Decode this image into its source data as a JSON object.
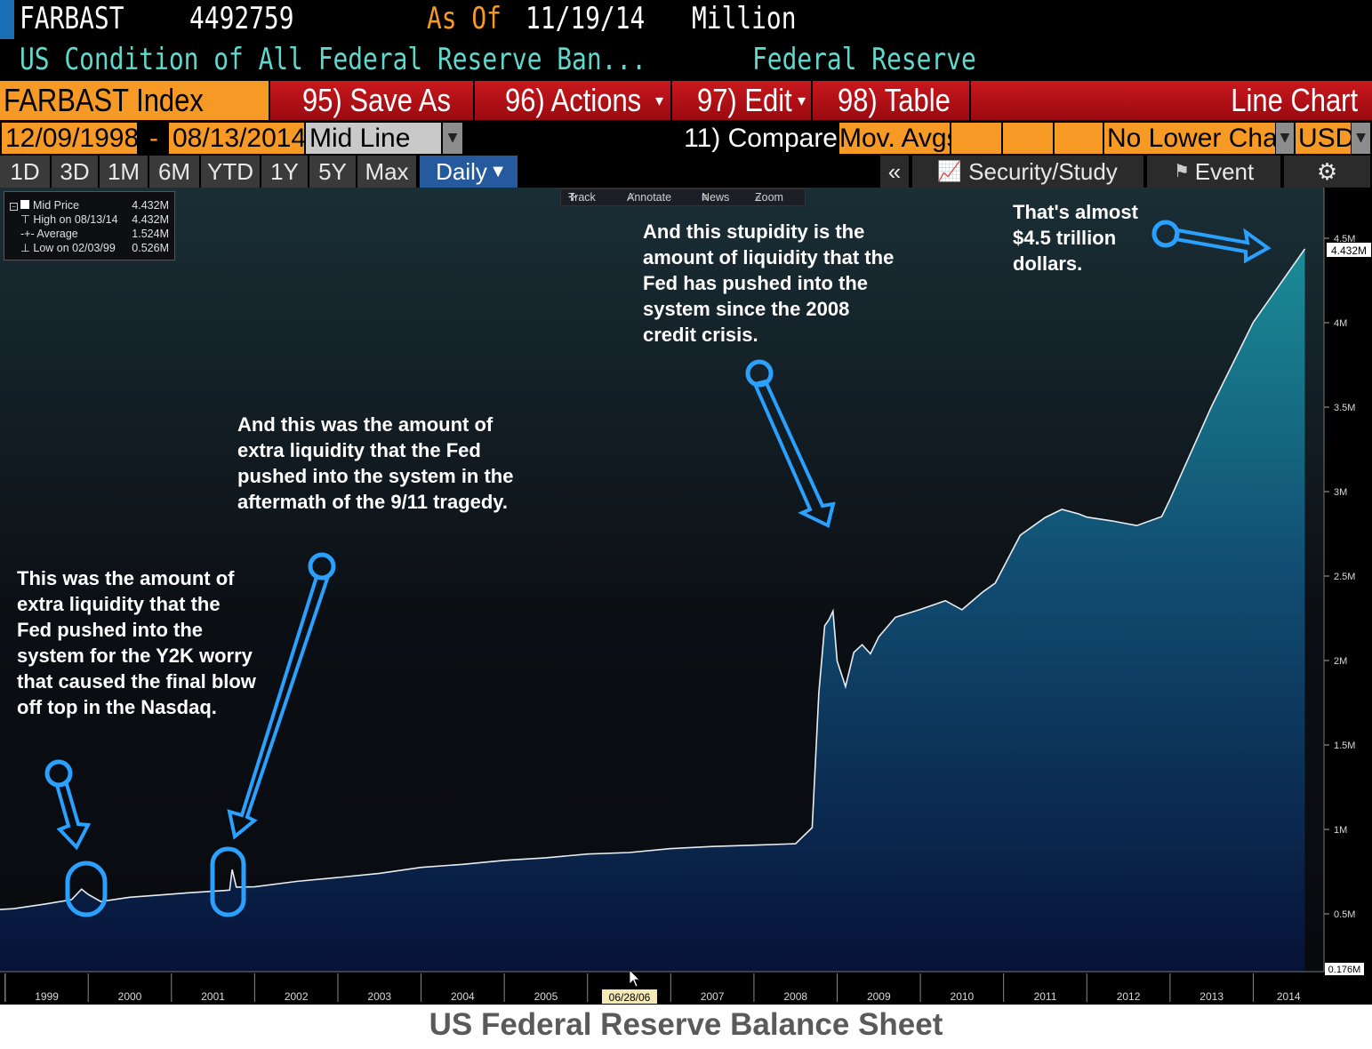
{
  "header": {
    "ticker": "FARBAST",
    "last_value": "4492759",
    "as_of_label": "As Of",
    "as_of_date": "11/19/14",
    "unit": "Million",
    "description": "US Condition of All Federal Reserve Ban...",
    "source": "Federal Reserve"
  },
  "command_bar": {
    "security": "FARBAST Index",
    "save_as": "95) Save As",
    "actions": "96) Actions",
    "edit": "97) Edit",
    "table": "98) Table",
    "view": "Line Chart"
  },
  "options_bar": {
    "start_date": "12/09/1998",
    "dash": "-",
    "end_date": "08/13/2014",
    "line_type": "Mid Line",
    "compare": "11) Compare",
    "mov_avgs": "Mov. Avgs",
    "lower_chart": "No Lower Chart",
    "currency": "USD"
  },
  "tabs": {
    "items": [
      "1D",
      "3D",
      "1M",
      "6M",
      "YTD",
      "1Y",
      "5Y",
      "Max"
    ],
    "active": "Daily",
    "collapse": "«",
    "security_study": "Security/Study",
    "event": "Event"
  },
  "legend": {
    "mid_label": "Mid Price",
    "mid_value": "4.432M",
    "high_label": "High on 08/13/14",
    "high_value": "4.432M",
    "avg_label": "Average",
    "avg_value": "1.524M",
    "low_label": "Low on 02/03/99",
    "low_value": "0.526M"
  },
  "toolbox": {
    "track": "Track",
    "annotate": "Annotate",
    "news": "News",
    "zoom": "Zoom"
  },
  "annotations": {
    "y2k": "This was the amount of extra liquidity that the Fed pushed into the system for the Y2K worry that caused the final blow off top in the Nasdaq.",
    "nine_eleven": "And this was the amount of extra liquidity that the Fed pushed into the system in the aftermath of the 9/11 tragedy.",
    "crisis": "And this stupidity is the amount of liquidity that the Fed has pushed into the system since the 2008 credit crisis.",
    "almost": "That's almost $4.5 trillion dollars."
  },
  "cursor_date": "06/28/06",
  "last_price_tag": "4.432M",
  "min_tag": "0.176M",
  "caption": "US Federal Reserve Balance Sheet",
  "colors": {
    "header_text": "#ffffff",
    "header_value": "#ffffff",
    "as_of": "#f79a25",
    "description": "#5fd9ce",
    "command_red": "#c8181d",
    "orange_field": "#f79a25",
    "active_tab": "#255a9e",
    "area_top": "#1b8d97",
    "area_bottom": "#071238",
    "callout": "#2aa0ff"
  },
  "chart_data": {
    "type": "area",
    "title": "US Federal Reserve Balance Sheet",
    "xlabel": "",
    "ylabel": "",
    "unit": "Million USD",
    "ylim": [
      176000,
      4600000
    ],
    "yticks": [
      "0.5M",
      "1M",
      "1.5M",
      "2M",
      "2.5M",
      "3M",
      "3.5M",
      "4M",
      "4.5M"
    ],
    "yticks_values": [
      500000,
      1000000,
      1500000,
      2000000,
      2500000,
      3000000,
      3500000,
      4000000,
      4500000
    ],
    "xticks": [
      "1999",
      "2000",
      "2001",
      "2002",
      "2003",
      "2004",
      "2005",
      "2006",
      "2007",
      "2008",
      "2009",
      "2010",
      "2011",
      "2012",
      "2013",
      "2014"
    ],
    "grid": false,
    "series": [
      {
        "name": "Mid Price",
        "x": [
          1998.94,
          1999.1,
          1999.5,
          1999.8,
          1999.92,
          2000.0,
          2000.15,
          2000.5,
          2001.0,
          2001.2,
          2001.7,
          2001.73,
          2001.78,
          2002.0,
          2002.5,
          2003.0,
          2003.5,
          2004.0,
          2004.5,
          2005.0,
          2005.5,
          2006.0,
          2006.5,
          2007.0,
          2007.5,
          2008.0,
          2008.5,
          2008.7,
          2008.78,
          2008.85,
          2008.9,
          2008.95,
          2009.0,
          2009.1,
          2009.2,
          2009.3,
          2009.4,
          2009.5,
          2009.7,
          2010.0,
          2010.3,
          2010.5,
          2010.75,
          2010.9,
          2011.0,
          2011.2,
          2011.5,
          2011.7,
          2011.9,
          2012.0,
          2012.3,
          2012.6,
          2012.9,
          2013.0,
          2013.5,
          2014.0,
          2014.62
        ],
        "values": [
          526000,
          540000,
          560000,
          590000,
          650000,
          620000,
          580000,
          600000,
          610000,
          620000,
          640000,
          760000,
          650000,
          660000,
          690000,
          720000,
          750000,
          780000,
          800000,
          820000,
          840000,
          860000,
          870000,
          880000,
          890000,
          900000,
          910000,
          1000000,
          1800000,
          2200000,
          2250000,
          2300000,
          2000000,
          1850000,
          2050000,
          2100000,
          2050000,
          2150000,
          2250000,
          2300000,
          2350000,
          2300000,
          2400000,
          2450000,
          2550000,
          2750000,
          2850000,
          2900000,
          2870000,
          2850000,
          2830000,
          2800000,
          2850000,
          2950000,
          3500000,
          4000000,
          4432000
        ]
      }
    ]
  }
}
